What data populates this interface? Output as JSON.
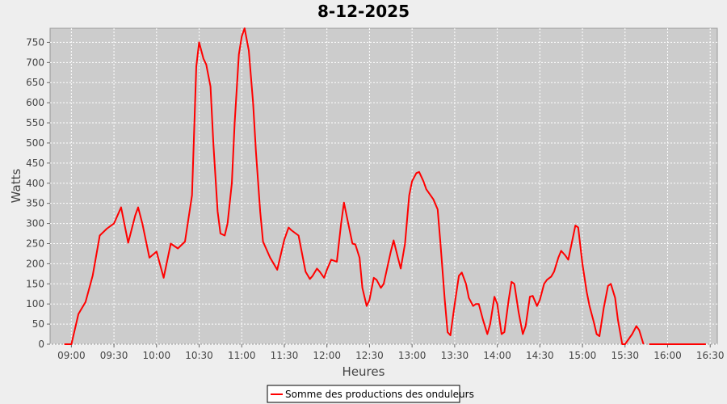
{
  "chart_data": {
    "type": "line",
    "title": "8-12-2025",
    "x_label": "Heures",
    "y_label": "Watts",
    "x": [
      "08:55",
      "09:00",
      "09:05",
      "09:10",
      "09:15",
      "09:20",
      "09:25",
      "09:30",
      "09:35",
      "09:40",
      "09:45",
      "09:47",
      "09:50",
      "09:55",
      "10:00",
      "10:05",
      "10:10",
      "10:15",
      "10:20",
      "10:25",
      "10:28",
      "10:30",
      "10:33",
      "10:35",
      "10:38",
      "10:40",
      "10:43",
      "10:45",
      "10:48",
      "10:50",
      "10:53",
      "10:55",
      "10:58",
      "11:00",
      "11:02",
      "11:05",
      "11:08",
      "11:10",
      "11:13",
      "11:15",
      "11:20",
      "11:25",
      "11:30",
      "11:33",
      "11:35",
      "11:40",
      "11:45",
      "11:48",
      "11:50",
      "11:53",
      "11:55",
      "11:58",
      "12:00",
      "12:03",
      "12:07",
      "12:10",
      "12:12",
      "12:15",
      "12:18",
      "12:20",
      "12:23",
      "12:25",
      "12:28",
      "12:30",
      "12:33",
      "12:35",
      "12:38",
      "12:40",
      "12:45",
      "12:47",
      "12:50",
      "12:52",
      "12:55",
      "12:58",
      "13:00",
      "13:03",
      "13:05",
      "13:08",
      "13:10",
      "13:15",
      "13:18",
      "13:20",
      "13:23",
      "13:25",
      "13:27",
      "13:30",
      "13:33",
      "13:35",
      "13:38",
      "13:40",
      "13:43",
      "13:45",
      "13:47",
      "13:50",
      "13:53",
      "13:55",
      "13:58",
      "14:00",
      "14:03",
      "14:05",
      "14:08",
      "14:10",
      "14:12",
      "14:15",
      "14:18",
      "14:20",
      "14:23",
      "14:25",
      "14:28",
      "14:30",
      "14:33",
      "14:35",
      "14:38",
      "14:40",
      "14:43",
      "14:45",
      "14:48",
      "14:50",
      "14:53",
      "14:55",
      "14:57",
      "15:00",
      "15:03",
      "15:05",
      "15:08",
      "15:10",
      "15:12",
      "15:15",
      "15:18",
      "15:20",
      "15:23",
      "15:25",
      "15:28",
      "15:30",
      "15:35",
      "15:38",
      "15:40",
      "15:43",
      "15:45",
      "15:47",
      "15:52",
      "15:57",
      "16:02",
      "16:07",
      "16:12",
      "16:17",
      "16:22",
      "16:27"
    ],
    "series": [
      {
        "name": "Somme des productions des onduleurs",
        "color": "#ff0000",
        "values": [
          0,
          0,
          75,
          105,
          170,
          270,
          287,
          300,
          340,
          252,
          320,
          340,
          300,
          215,
          230,
          165,
          250,
          238,
          255,
          370,
          690,
          750,
          710,
          695,
          640,
          500,
          330,
          275,
          270,
          300,
          400,
          550,
          720,
          765,
          785,
          730,
          600,
          480,
          330,
          255,
          215,
          185,
          260,
          290,
          283,
          270,
          180,
          162,
          170,
          188,
          180,
          165,
          185,
          210,
          205,
          300,
          352,
          300,
          250,
          248,
          215,
          140,
          95,
          110,
          165,
          160,
          140,
          150,
          230,
          258,
          215,
          188,
          250,
          370,
          405,
          425,
          428,
          405,
          385,
          360,
          335,
          250,
          110,
          30,
          22,
          100,
          170,
          178,
          150,
          115,
          95,
          100,
          100,
          60,
          25,
          50,
          118,
          100,
          25,
          30,
          110,
          155,
          150,
          80,
          25,
          45,
          118,
          120,
          95,
          110,
          150,
          160,
          168,
          180,
          215,
          232,
          220,
          210,
          260,
          295,
          290,
          200,
          130,
          95,
          55,
          25,
          20,
          90,
          145,
          150,
          115,
          60,
          0,
          0,
          25,
          45,
          35,
          0,
          null,
          0,
          0,
          0,
          0,
          0,
          0,
          0,
          0,
          0
        ]
      }
    ],
    "xlim": [
      "08:45",
      "16:35"
    ],
    "xticks": [
      "09:00",
      "09:30",
      "10:00",
      "10:30",
      "11:00",
      "11:30",
      "12:00",
      "12:30",
      "13:00",
      "13:30",
      "14:00",
      "14:30",
      "15:00",
      "15:30",
      "16:00",
      "16:30"
    ],
    "ylim": [
      0,
      785
    ],
    "yticks": [
      0,
      50,
      100,
      150,
      200,
      250,
      300,
      350,
      400,
      450,
      500,
      550,
      600,
      650,
      700,
      750
    ],
    "grid": true,
    "legend": "bottom"
  }
}
